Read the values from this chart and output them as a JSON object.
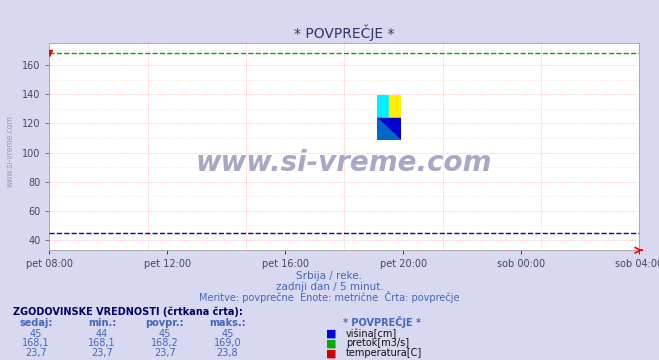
{
  "title": "* POVPREČJE *",
  "subtitle1": "Srbija / reke.",
  "subtitle2": "zadnji dan / 5 minut.",
  "subtitle3": "Meritve: povprečne  Enote: metrične  Črta: povprečje",
  "watermark": "www.si-vreme.com",
  "xlabel_ticks": [
    "pet 08:00",
    "pet 12:00",
    "pet 16:00",
    "pet 20:00",
    "sob 00:00",
    "sob 04:00"
  ],
  "ylim": [
    33,
    175
  ],
  "yticks": [
    40,
    60,
    80,
    100,
    120,
    140,
    160
  ],
  "n_points": 288,
  "visina_value": 45,
  "pretok_value": 168.1,
  "temperatura_value": 23.7,
  "visina_color": "#0000dd",
  "pretok_color": "#00aa00",
  "temperatura_color": "#cc0000",
  "bg_color": "#d8d8f0",
  "plot_bg": "#ffffff",
  "grid_color": "#ffaaaa",
  "grid_color_minor": "#ffcccc",
  "table_header_color": "#4466bb",
  "table_data_color": "#4466bb",
  "table_label_color": "#000066",
  "hist_label": "ZGODOVINSKE VREDNOSTI (črtkana črta):",
  "col_headers": [
    "sedaj:",
    "min.:",
    "povpr.:",
    "maks.:"
  ],
  "row1": [
    "45",
    "44",
    "45",
    "45"
  ],
  "row2": [
    "168,1",
    "168,1",
    "168,2",
    "169,0"
  ],
  "row3": [
    "23,7",
    "23,7",
    "23,7",
    "23,8"
  ],
  "legend_labels": [
    "višina[cm]",
    "pretok[m3/s]",
    "temperatura[C]"
  ],
  "legend_col": "* POVPREČJE *",
  "axis_label_color": "#444466",
  "watermark_color": "#9999bb",
  "title_color": "#333366"
}
